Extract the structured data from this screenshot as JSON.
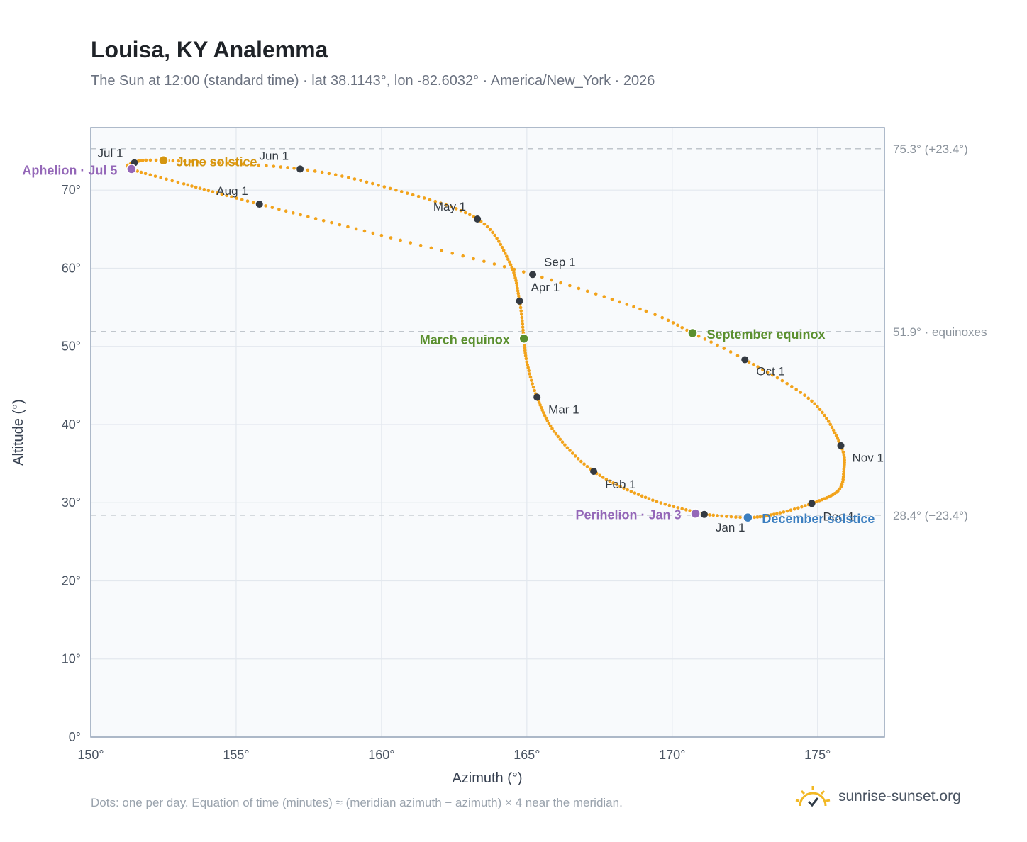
{
  "header": {
    "title": "Louisa, KY Analemma",
    "subtitle": "The Sun at 12:00 (standard time) · lat 38.1143°, lon -82.6032° · America/New_York · 2026"
  },
  "footer": {
    "note": "Dots: one per day. Equation of time (minutes) ≈ (meridian azimuth − azimuth) × 4 near the meridian.",
    "brand": "sunrise-sunset.org"
  },
  "colors": {
    "curve": "#f2a31b",
    "month_point": "#343a42",
    "equinox": "#5a8f2e",
    "june_solstice": "#d4950f",
    "december_solstice": "#3c7fc0",
    "apsis": "#9467b8",
    "grid": "#e3e8ee",
    "plot_bg": "#f8fafc",
    "ref_line": "#c0c6cc",
    "frame": "#94a3b8"
  },
  "chart_data": {
    "type": "scatter",
    "title": "Louisa, KY Analemma",
    "xlabel": "Azimuth (°)",
    "ylabel": "Altitude (°)",
    "xlim": [
      150,
      177.3
    ],
    "ylim": [
      0,
      78
    ],
    "x_ticks": [
      150,
      155,
      160,
      165,
      170,
      175
    ],
    "x_tick_labels": [
      "150°",
      "155°",
      "160°",
      "165°",
      "170°",
      "175°"
    ],
    "y_ticks": [
      0,
      10,
      20,
      30,
      40,
      50,
      60,
      70
    ],
    "y_tick_labels": [
      "0°",
      "10°",
      "20°",
      "30°",
      "40°",
      "50°",
      "60°",
      "70°"
    ],
    "grid": true,
    "curve_anchors": [
      {
        "day": 1,
        "az": 171.1,
        "alt": 28.5
      },
      {
        "day": 16,
        "az": 169.2,
        "alt": 30.5
      },
      {
        "day": 32,
        "az": 167.3,
        "alt": 34.0
      },
      {
        "day": 46,
        "az": 166.0,
        "alt": 38.8
      },
      {
        "day": 60,
        "az": 165.35,
        "alt": 43.5
      },
      {
        "day": 71,
        "az": 165.0,
        "alt": 48.0
      },
      {
        "day": 79,
        "az": 164.9,
        "alt": 51.0
      },
      {
        "day": 91,
        "az": 164.75,
        "alt": 55.8
      },
      {
        "day": 106,
        "az": 164.4,
        "alt": 60.8
      },
      {
        "day": 121,
        "az": 163.3,
        "alt": 66.3
      },
      {
        "day": 137,
        "az": 160.5,
        "alt": 70.0
      },
      {
        "day": 152,
        "az": 157.2,
        "alt": 72.7
      },
      {
        "day": 172,
        "az": 152.5,
        "alt": 73.8
      },
      {
        "day": 182,
        "az": 151.5,
        "alt": 73.5
      },
      {
        "day": 186,
        "az": 151.4,
        "alt": 72.7
      },
      {
        "day": 197,
        "az": 153.2,
        "alt": 70.8
      },
      {
        "day": 213,
        "az": 155.8,
        "alt": 68.2
      },
      {
        "day": 229,
        "az": 160.0,
        "alt": 64.2
      },
      {
        "day": 244,
        "az": 165.2,
        "alt": 59.2
      },
      {
        "day": 258,
        "az": 169.1,
        "alt": 54.5
      },
      {
        "day": 266,
        "az": 170.7,
        "alt": 51.7
      },
      {
        "day": 274,
        "az": 172.5,
        "alt": 48.3
      },
      {
        "day": 289,
        "az": 174.8,
        "alt": 43.0
      },
      {
        "day": 305,
        "az": 175.8,
        "alt": 37.3
      },
      {
        "day": 315,
        "az": 175.9,
        "alt": 34.0
      },
      {
        "day": 323,
        "az": 175.7,
        "alt": 31.5
      },
      {
        "day": 335,
        "az": 174.8,
        "alt": 29.9
      },
      {
        "day": 345,
        "az": 173.6,
        "alt": 28.6
      },
      {
        "day": 355,
        "az": 172.6,
        "alt": 28.1
      },
      {
        "day": 366,
        "az": 171.1,
        "alt": 28.5
      }
    ],
    "month_points": [
      {
        "label": "Jan 1",
        "az": 171.1,
        "alt": 28.5,
        "dx": 16,
        "dy": 24,
        "anchor": "start"
      },
      {
        "label": "Feb 1",
        "az": 167.3,
        "alt": 34.0,
        "dx": 16,
        "dy": 24,
        "anchor": "start"
      },
      {
        "label": "Mar 1",
        "az": 165.35,
        "alt": 43.5,
        "dx": 16,
        "dy": 23,
        "anchor": "start"
      },
      {
        "label": "Apr 1",
        "az": 164.75,
        "alt": 55.8,
        "dx": 16,
        "dy": -14,
        "anchor": "start"
      },
      {
        "label": "May 1",
        "az": 163.3,
        "alt": 66.3,
        "dx": -16,
        "dy": -12,
        "anchor": "end"
      },
      {
        "label": "Jun 1",
        "az": 157.2,
        "alt": 72.7,
        "dx": -16,
        "dy": -13,
        "anchor": "end"
      },
      {
        "label": "Jul 1",
        "az": 151.5,
        "alt": 73.5,
        "dx": -16,
        "dy": -8,
        "anchor": "end"
      },
      {
        "label": "Aug 1",
        "az": 155.8,
        "alt": 68.2,
        "dx": -16,
        "dy": -13,
        "anchor": "end"
      },
      {
        "label": "Sep 1",
        "az": 165.2,
        "alt": 59.2,
        "dx": 16,
        "dy": -12,
        "anchor": "start"
      },
      {
        "label": "Oct 1",
        "az": 172.5,
        "alt": 48.3,
        "dx": 16,
        "dy": 22,
        "anchor": "start"
      },
      {
        "label": "Nov 1",
        "az": 175.8,
        "alt": 37.3,
        "dx": 16,
        "dy": 23,
        "anchor": "start"
      },
      {
        "label": "Dec 1",
        "az": 174.8,
        "alt": 29.9,
        "dx": 16,
        "dy": 24,
        "anchor": "start"
      }
    ],
    "events": [
      {
        "label": "June solstice",
        "az": 152.5,
        "alt": 73.8,
        "color": "#d4950f",
        "dx": 18,
        "dy": 8,
        "anchor": "start"
      },
      {
        "label": "Aphelion · Jul 5",
        "az": 151.4,
        "alt": 72.7,
        "color": "#9467b8",
        "dx": -20,
        "dy": 8,
        "anchor": "end"
      },
      {
        "label": "March equinox",
        "az": 164.9,
        "alt": 51.0,
        "color": "#5a8f2e",
        "dx": -20,
        "dy": 8,
        "anchor": "end"
      },
      {
        "label": "September equinox",
        "az": 170.7,
        "alt": 51.7,
        "color": "#5a8f2e",
        "dx": 20,
        "dy": 8,
        "anchor": "start"
      },
      {
        "label": "Perihelion · Jan 3",
        "az": 170.8,
        "alt": 28.6,
        "color": "#9467b8",
        "dx": -20,
        "dy": 8,
        "anchor": "end"
      },
      {
        "label": "December solstice",
        "az": 172.6,
        "alt": 28.1,
        "color": "#3c7fc0",
        "dx": 20,
        "dy": 8,
        "anchor": "start"
      }
    ],
    "reference_lines": [
      {
        "y": 75.3,
        "label": "75.3° (+23.4°)"
      },
      {
        "y": 51.9,
        "label": "51.9° · equinoxes"
      },
      {
        "y": 28.4,
        "label": "28.4° (−23.4°)"
      }
    ]
  }
}
